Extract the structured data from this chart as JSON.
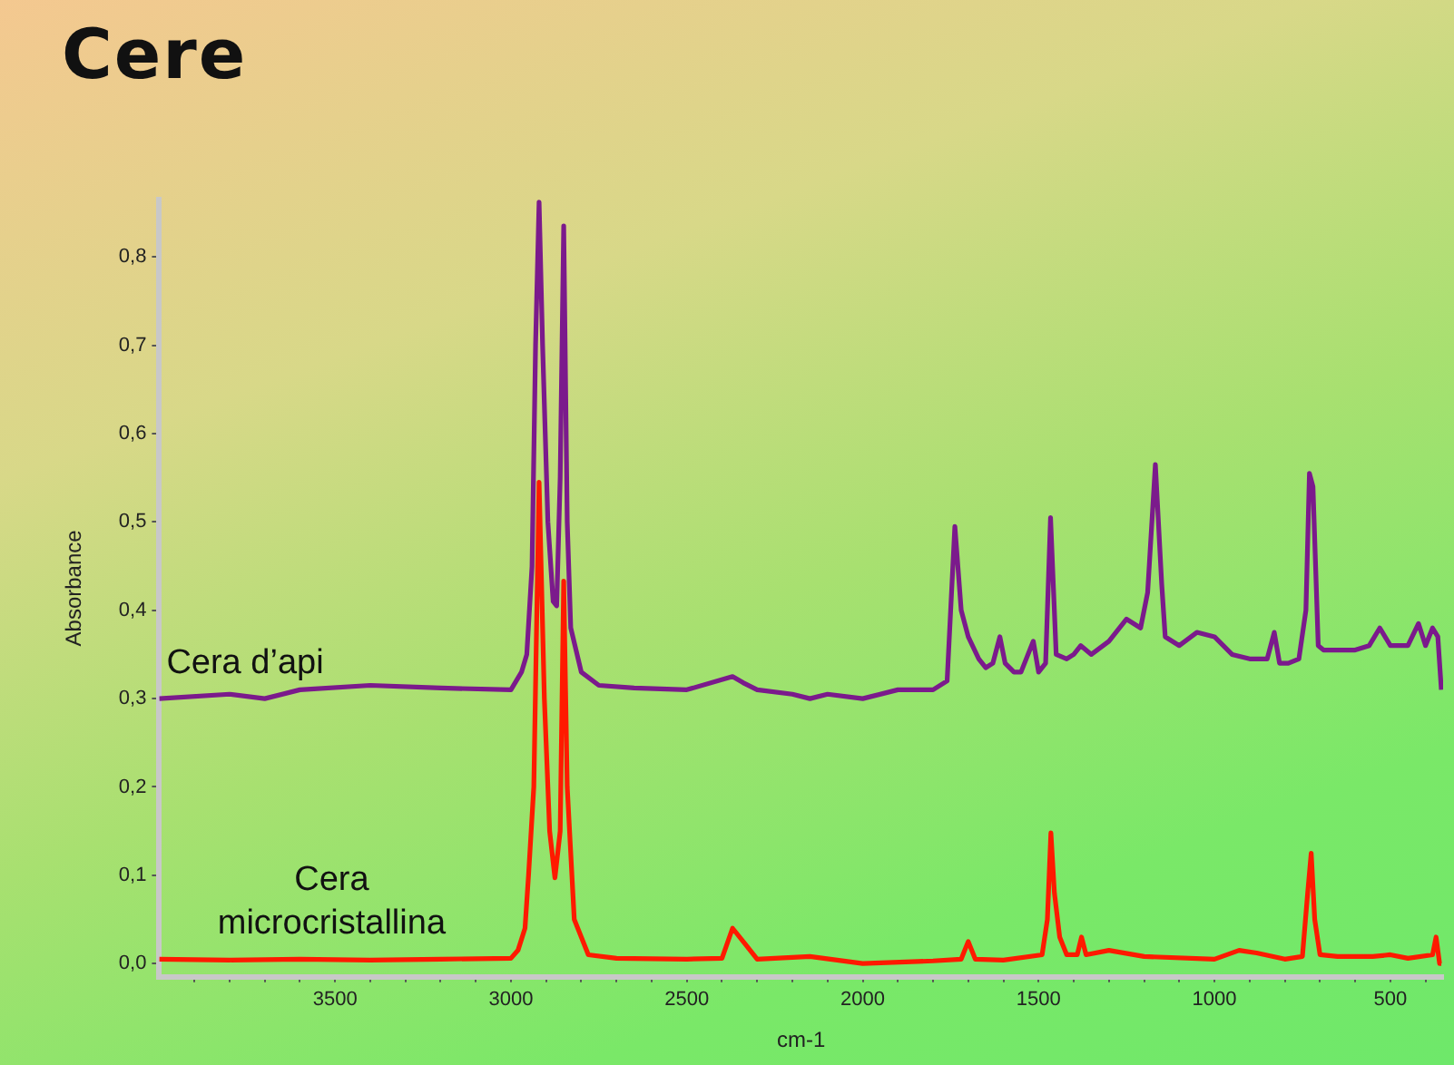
{
  "chart_data": {
    "type": "line",
    "title": "Cere",
    "xlabel": "cm-1",
    "ylabel": "Absorbance",
    "xlim": [
      4000,
      350
    ],
    "ylim": [
      -0.015,
      0.865
    ],
    "xticks": [
      {
        "value": 3900,
        "label": null
      },
      {
        "value": 3800,
        "label": null
      },
      {
        "value": 3700,
        "label": null
      },
      {
        "value": 3600,
        "label": null
      },
      3500,
      {
        "value": 3400,
        "label": null
      },
      {
        "value": 3300,
        "label": null
      },
      {
        "value": 3200,
        "label": null
      },
      {
        "value": 3100,
        "label": null
      },
      3000,
      {
        "value": 2900,
        "label": null
      },
      {
        "value": 2800,
        "label": null
      },
      {
        "value": 2700,
        "label": null
      },
      {
        "value": 2600,
        "label": null
      },
      2500,
      {
        "value": 2400,
        "label": null
      },
      {
        "value": 2300,
        "label": null
      },
      {
        "value": 2200,
        "label": null
      },
      {
        "value": 2100,
        "label": null
      },
      2000,
      {
        "value": 1900,
        "label": null
      },
      {
        "value": 1800,
        "label": null
      },
      {
        "value": 1700,
        "label": null
      },
      {
        "value": 1600,
        "label": null
      },
      1500,
      {
        "value": 1400,
        "label": null
      },
      {
        "value": 1300,
        "label": null
      },
      {
        "value": 1200,
        "label": null
      },
      {
        "value": 1100,
        "label": null
      },
      1000,
      {
        "value": 900,
        "label": null
      },
      {
        "value": 800,
        "label": null
      },
      {
        "value": 700,
        "label": null
      },
      {
        "value": 600,
        "label": null
      },
      500,
      {
        "value": 400,
        "label": null
      }
    ],
    "yticks": [
      {
        "value": 0,
        "label": "0,0"
      },
      {
        "value": 0.1,
        "label": "0,1"
      },
      {
        "value": 0.2,
        "label": "0,2"
      },
      {
        "value": 0.3,
        "label": "0,3"
      },
      {
        "value": 0.4,
        "label": "0,4"
      },
      {
        "value": 0.5,
        "label": "0,5"
      },
      {
        "value": 0.6,
        "label": "0,6"
      },
      {
        "value": 0.7,
        "label": "0,7"
      },
      {
        "value": 0.8,
        "label": "0,8"
      }
    ],
    "grid": false,
    "legend": false,
    "marker": "none",
    "line_style": "solid",
    "series": [
      {
        "name": "Cera d’api",
        "color": "#7b1a8c",
        "x": [
          4000,
          3800,
          3700,
          3600,
          3400,
          3200,
          3000,
          2970,
          2955,
          2940,
          2930,
          2920,
          2910,
          2895,
          2880,
          2870,
          2860,
          2850,
          2840,
          2830,
          2800,
          2750,
          2650,
          2500,
          2370,
          2340,
          2300,
          2200,
          2150,
          2100,
          2000,
          1900,
          1800,
          1760,
          1738,
          1720,
          1700,
          1670,
          1650,
          1630,
          1610,
          1595,
          1570,
          1550,
          1515,
          1500,
          1480,
          1466,
          1450,
          1420,
          1400,
          1380,
          1350,
          1300,
          1250,
          1210,
          1190,
          1168,
          1150,
          1140,
          1100,
          1050,
          1000,
          950,
          900,
          850,
          830,
          815,
          790,
          760,
          740,
          730,
          720,
          705,
          690,
          650,
          600,
          560,
          530,
          500,
          450,
          420,
          400,
          380,
          365,
          355
        ],
        "values": [
          0.3,
          0.305,
          0.3,
          0.31,
          0.315,
          0.312,
          0.31,
          0.33,
          0.35,
          0.45,
          0.7,
          0.862,
          0.7,
          0.5,
          0.41,
          0.405,
          0.55,
          0.835,
          0.5,
          0.38,
          0.33,
          0.315,
          0.312,
          0.31,
          0.325,
          0.318,
          0.31,
          0.305,
          0.3,
          0.305,
          0.3,
          0.31,
          0.31,
          0.32,
          0.495,
          0.4,
          0.37,
          0.345,
          0.335,
          0.34,
          0.37,
          0.34,
          0.33,
          0.33,
          0.365,
          0.33,
          0.34,
          0.505,
          0.35,
          0.345,
          0.35,
          0.36,
          0.35,
          0.365,
          0.39,
          0.38,
          0.42,
          0.565,
          0.43,
          0.37,
          0.36,
          0.375,
          0.37,
          0.35,
          0.345,
          0.345,
          0.375,
          0.34,
          0.34,
          0.345,
          0.4,
          0.555,
          0.54,
          0.36,
          0.355,
          0.355,
          0.355,
          0.36,
          0.38,
          0.36,
          0.36,
          0.385,
          0.36,
          0.38,
          0.37,
          0.31
        ]
      },
      {
        "name": "Cera microcristallina",
        "color": "#ff1a00",
        "x": [
          4000,
          3800,
          3600,
          3400,
          3200,
          3000,
          2980,
          2960,
          2950,
          2935,
          2920,
          2905,
          2890,
          2875,
          2860,
          2850,
          2840,
          2820,
          2780,
          2700,
          2500,
          2400,
          2370,
          2330,
          2300,
          2150,
          2000,
          1800,
          1720,
          1700,
          1680,
          1600,
          1490,
          1475,
          1465,
          1455,
          1440,
          1420,
          1390,
          1378,
          1365,
          1300,
          1200,
          1000,
          930,
          880,
          800,
          750,
          735,
          725,
          715,
          700,
          650,
          550,
          500,
          450,
          380,
          370,
          360,
          355
        ],
        "values": [
          0.005,
          0.004,
          0.005,
          0.004,
          0.005,
          0.006,
          0.015,
          0.04,
          0.1,
          0.2,
          0.545,
          0.3,
          0.15,
          0.097,
          0.15,
          0.433,
          0.2,
          0.05,
          0.01,
          0.006,
          0.005,
          0.006,
          0.04,
          0.02,
          0.005,
          0.008,
          0.0,
          0.003,
          0.005,
          0.025,
          0.005,
          0.004,
          0.01,
          0.05,
          0.148,
          0.08,
          0.03,
          0.01,
          0.01,
          0.03,
          0.01,
          0.015,
          0.008,
          0.005,
          0.015,
          0.012,
          0.005,
          0.008,
          0.08,
          0.125,
          0.05,
          0.01,
          0.008,
          0.008,
          0.01,
          0.006,
          0.01,
          0.03,
          0.0,
          0.0
        ]
      }
    ]
  }
}
